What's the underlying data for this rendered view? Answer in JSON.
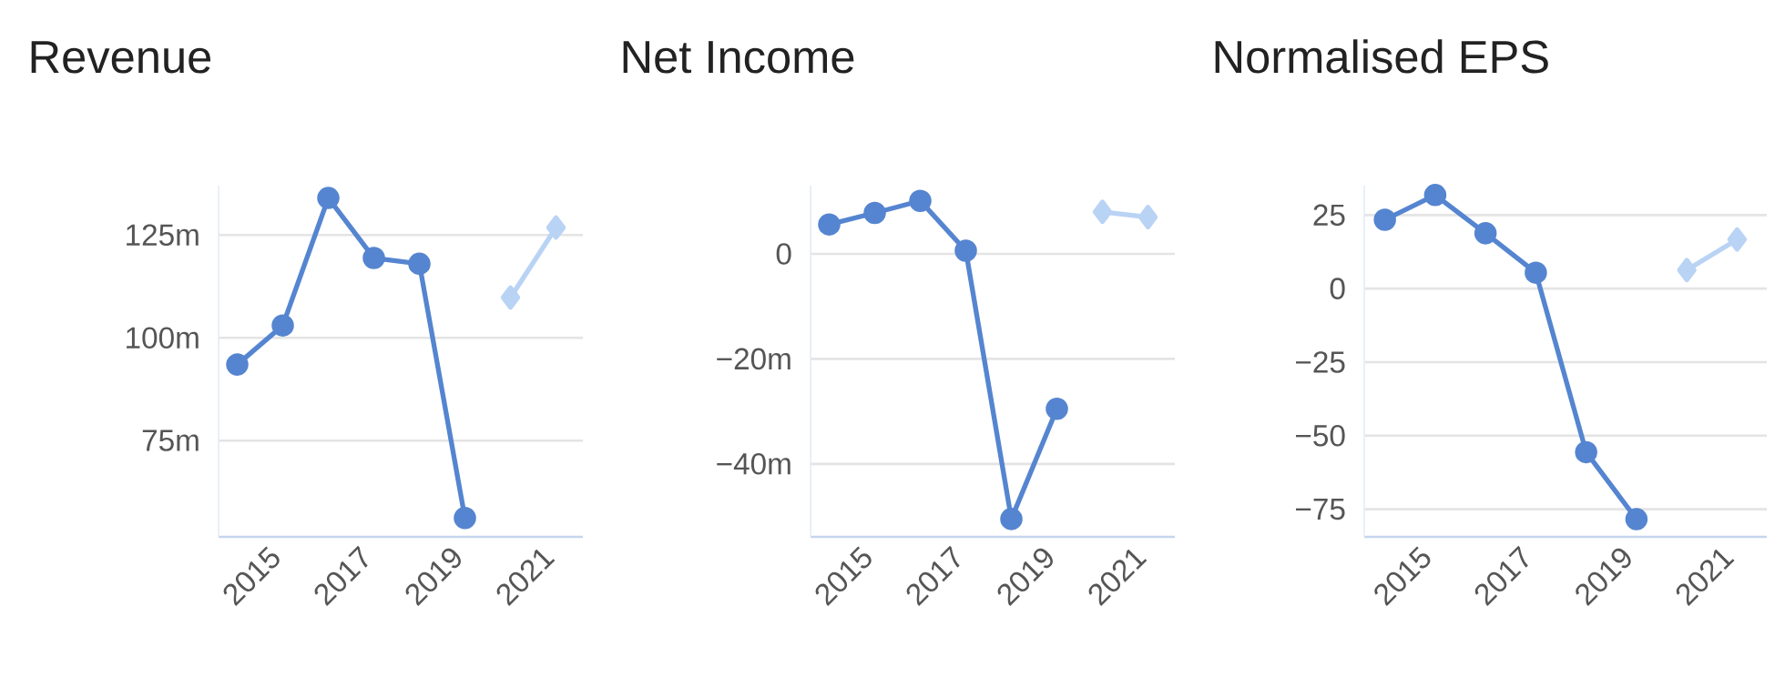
{
  "chart_data": [
    {
      "type": "line",
      "title": "Revenue",
      "xlim": [
        "2013-12",
        "2021-12"
      ],
      "xticks": [
        "2015",
        "2017",
        "2019",
        "2021"
      ],
      "ylim": [
        51.6,
        137
      ],
      "yticks": [
        {
          "value": 75,
          "label": "75m"
        },
        {
          "value": 100,
          "label": "100m"
        },
        {
          "value": 125,
          "label": "125m"
        }
      ],
      "grid": "y",
      "series": [
        {
          "color": "#5585d0",
          "marker": "circle",
          "x": [
            "2014-05",
            "2015-05",
            "2016-05",
            "2017-05",
            "2018-05",
            "2019-05"
          ],
          "values": [
            93.5,
            103,
            134,
            119.4,
            118,
            56.2
          ]
        },
        {
          "color": "#b9d3f5",
          "marker": "diamond",
          "x": [
            "2020-05",
            "2021-05"
          ],
          "values": [
            109.8,
            126.8
          ]
        }
      ]
    },
    {
      "type": "line",
      "title": "Net Income",
      "xlim": [
        "2013-12",
        "2021-12"
      ],
      "xticks": [
        "2015",
        "2017",
        "2019",
        "2021"
      ],
      "ylim": [
        -53.9,
        13
      ],
      "yticks": [
        {
          "value": -40,
          "label": "−40m"
        },
        {
          "value": -20,
          "label": "−20m"
        },
        0
      ],
      "grid": "y",
      "series": [
        {
          "color": "#5585d0",
          "marker": "circle",
          "x": [
            "2014-05",
            "2015-05",
            "2016-05",
            "2017-05",
            "2018-05",
            "2019-05"
          ],
          "values": [
            5.6,
            7.8,
            10.1,
            0.6,
            -50.5,
            -29.5
          ]
        },
        {
          "color": "#b9d3f5",
          "marker": "diamond",
          "x": [
            "2020-05",
            "2021-05"
          ],
          "values": [
            8.0,
            7.0
          ]
        }
      ]
    },
    {
      "type": "line",
      "title": "Normalised EPS",
      "xlim": [
        "2013-12",
        "2021-12"
      ],
      "xticks": [
        "2015",
        "2017",
        "2019",
        "2021"
      ],
      "ylim": [
        -84.4,
        35
      ],
      "yticks": [
        {
          "value": -75,
          "label": "−75"
        },
        {
          "value": -50,
          "label": "−50"
        },
        {
          "value": -25,
          "label": "−25"
        },
        0,
        25
      ],
      "grid": "y",
      "series": [
        {
          "color": "#5585d0",
          "marker": "circle",
          "x": [
            "2014-05",
            "2015-05",
            "2016-05",
            "2017-05",
            "2018-05",
            "2019-05"
          ],
          "values": [
            23.4,
            31.8,
            18.8,
            5.4,
            -55.6,
            -78.4
          ]
        },
        {
          "color": "#b9d3f5",
          "marker": "diamond",
          "x": [
            "2020-05",
            "2021-05"
          ],
          "values": [
            6.3,
            16.7
          ]
        }
      ]
    }
  ]
}
